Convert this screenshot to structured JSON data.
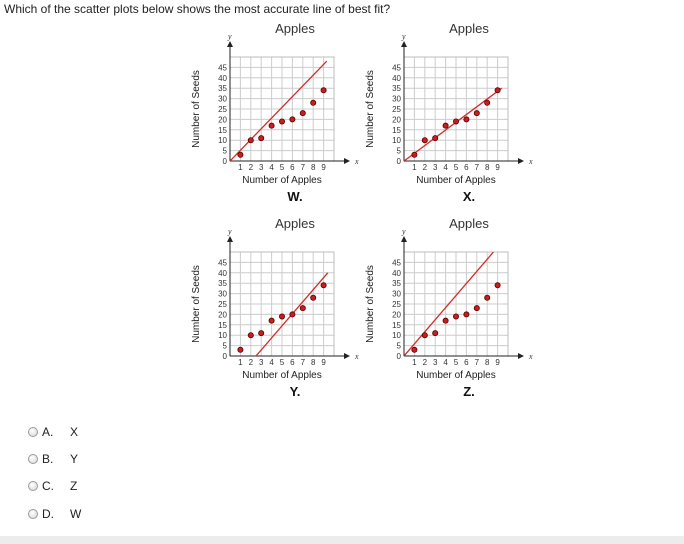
{
  "question": "Which of the scatter plots below shows the most accurate line of best fit?",
  "options": [
    {
      "letter": "A.",
      "value": "X"
    },
    {
      "letter": "B.",
      "value": "Y"
    },
    {
      "letter": "C.",
      "value": "Z"
    },
    {
      "letter": "D.",
      "value": "W"
    }
  ],
  "colors": {
    "line": "#d42a2a",
    "point": "#c81e1e"
  },
  "chart_data": [
    {
      "type": "scatter",
      "id": "W",
      "title": "Apples",
      "label": "W.",
      "xlabel": "Number of Apples",
      "ylabel": "Number of Seeds",
      "xaxis_letter": "x",
      "yaxis_letter": "y",
      "xlim": [
        0,
        10
      ],
      "ylim": [
        0,
        50
      ],
      "xticks": [
        1,
        2,
        3,
        4,
        5,
        6,
        7,
        8,
        9
      ],
      "yticks": [
        0,
        5,
        10,
        15,
        20,
        25,
        30,
        35,
        40,
        45
      ],
      "points": [
        [
          1,
          3
        ],
        [
          2,
          10
        ],
        [
          3,
          11
        ],
        [
          4,
          17
        ],
        [
          5,
          19
        ],
        [
          6,
          20
        ],
        [
          7,
          23
        ],
        [
          8,
          28
        ],
        [
          9,
          34
        ]
      ],
      "line": [
        [
          0,
          0
        ],
        [
          9.3,
          48
        ]
      ]
    },
    {
      "type": "scatter",
      "id": "X",
      "title": "Apples",
      "label": "X.",
      "xlabel": "Number of Apples",
      "ylabel": "Number of Seeds",
      "xaxis_letter": "x",
      "yaxis_letter": "y",
      "xlim": [
        0,
        10
      ],
      "ylim": [
        0,
        50
      ],
      "xticks": [
        1,
        2,
        3,
        4,
        5,
        6,
        7,
        8,
        9
      ],
      "yticks": [
        0,
        5,
        10,
        15,
        20,
        25,
        30,
        35,
        40,
        45
      ],
      "points": [
        [
          1,
          3
        ],
        [
          2,
          10
        ],
        [
          3,
          11
        ],
        [
          4,
          17
        ],
        [
          5,
          19
        ],
        [
          6,
          20
        ],
        [
          7,
          23
        ],
        [
          8,
          28
        ],
        [
          9,
          34
        ]
      ],
      "line": [
        [
          0,
          0
        ],
        [
          9.4,
          35
        ]
      ]
    },
    {
      "type": "scatter",
      "id": "Y",
      "title": "Apples",
      "label": "Y.",
      "xlabel": "Number of Apples",
      "ylabel": "Number of Seeds",
      "xaxis_letter": "x",
      "yaxis_letter": "y",
      "xlim": [
        0,
        10
      ],
      "ylim": [
        0,
        50
      ],
      "xticks": [
        1,
        2,
        3,
        4,
        5,
        6,
        7,
        8,
        9
      ],
      "yticks": [
        0,
        5,
        10,
        15,
        20,
        25,
        30,
        35,
        40,
        45
      ],
      "points": [
        [
          1,
          3
        ],
        [
          2,
          10
        ],
        [
          3,
          11
        ],
        [
          4,
          17
        ],
        [
          5,
          19
        ],
        [
          6,
          20
        ],
        [
          7,
          23
        ],
        [
          8,
          28
        ],
        [
          9,
          34
        ]
      ],
      "line": [
        [
          2.5,
          0
        ],
        [
          9.4,
          40
        ]
      ]
    },
    {
      "type": "scatter",
      "id": "Z",
      "title": "Apples",
      "label": "Z.",
      "xlabel": "Number of Apples",
      "ylabel": "Number of Seeds",
      "xaxis_letter": "x",
      "yaxis_letter": "y",
      "xlim": [
        0,
        10
      ],
      "ylim": [
        0,
        50
      ],
      "xticks": [
        1,
        2,
        3,
        4,
        5,
        6,
        7,
        8,
        9
      ],
      "yticks": [
        0,
        5,
        10,
        15,
        20,
        25,
        30,
        35,
        40,
        45
      ],
      "points": [
        [
          1,
          3
        ],
        [
          2,
          10
        ],
        [
          3,
          11
        ],
        [
          4,
          17
        ],
        [
          5,
          19
        ],
        [
          6,
          20
        ],
        [
          7,
          23
        ],
        [
          8,
          28
        ],
        [
          9,
          34
        ]
      ],
      "line": [
        [
          0,
          0
        ],
        [
          8.6,
          50
        ]
      ]
    }
  ]
}
